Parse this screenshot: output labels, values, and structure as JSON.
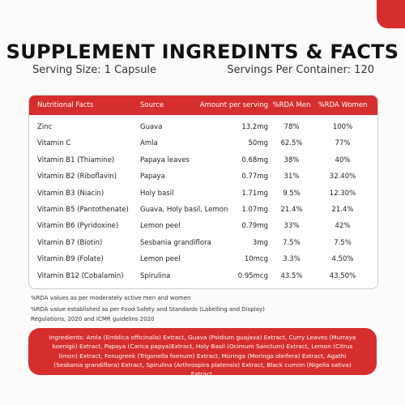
{
  "header": {
    "title": "SUPPLEMENT INGREDINTS & FACTS",
    "serving_size": "Serving Size: 1 Capsule",
    "servings_per_container": "Servings Per Container: 120"
  },
  "table": {
    "columns": [
      "Nutritional Facts",
      "Source",
      "Amount per serving",
      "%RDA Men",
      "%RDA Women"
    ],
    "rows": [
      [
        "Zinc",
        "Guava",
        "13.2mg",
        "78%",
        "100%"
      ],
      [
        "Vitamin C",
        "Amla",
        "50mg",
        "62.5%",
        "77%"
      ],
      [
        "Vitamin B1 (Thiamine)",
        "Papaya leaves",
        "0.68mg",
        "38%",
        "40%"
      ],
      [
        "Vitamin B2 (Riboflavin)",
        "Papaya",
        "0.77mg",
        "31%",
        "32.40%"
      ],
      [
        "Vitamin B3 (Niacin)",
        "Holy basil",
        "1.71mg",
        "9.5%",
        "12.30%"
      ],
      [
        "Vitamin B5 (Pantothenate)",
        "Guava, Holy basil, Lemon",
        "1.07mg",
        "21.4%",
        "21.4%"
      ],
      [
        "Vitamin B6 (Pyridoxine)",
        "Lemon peel",
        "0.79mg",
        "33%",
        "42%"
      ],
      [
        "Vitamin B7 (Biotin)",
        "Sesbania grandiflora",
        "3mg",
        "7.5%",
        "7.5%"
      ],
      [
        "Vitamin B9 (Folate)",
        "Lemon peel",
        "10mcg",
        "3.3%",
        "4.50%"
      ],
      [
        "Vitamin B12 (Cobalamin)",
        "Spirulina",
        "0.95mcg",
        "43.5%",
        "43.50%"
      ]
    ]
  },
  "notes": [
    "%RDA values as per moderately active men and women",
    "%RDA value established as per Food Safety and Standards (Labelling and Display) Regulations, 2020 and ICMR guidelins 2020"
  ],
  "ingredients": "Ingredients: Amla (Emblica officinalis) Extract, Guava (Psidium guajava) Extract, Curry Leaves (Murraya koenigii) Extract, Papaya (Carica papya)Extract, Holy Basil (Ocimum Sanctum) Extract, Lemon (Citrus limon) Extract, Fenugreek (Trigonella foenum) Extract, Moringa (Moringa oleifera) Extract, Agathi (Sesbania grandiflora) Extract, Spirulina (Arthrospira platensis) Extract, Black cumim (Nigella sativa) Extract."
}
